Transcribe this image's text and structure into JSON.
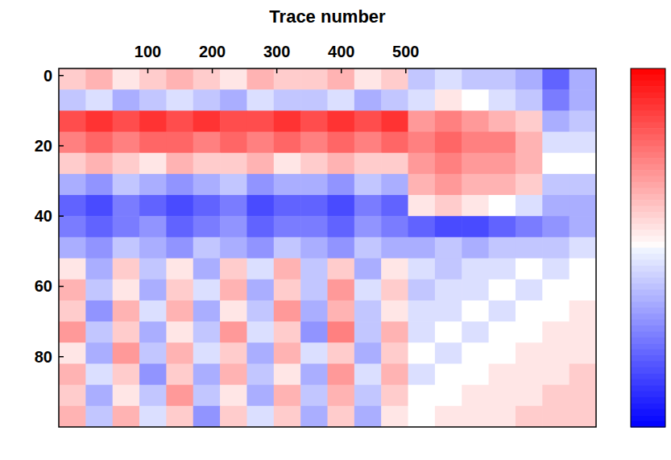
{
  "chart_data": {
    "type": "heatmap",
    "x_label": "Trace number",
    "xlim": [
      -38,
      795
    ],
    "ylim": [
      -2,
      100
    ],
    "xticks": [
      100,
      200,
      300,
      400,
      500
    ],
    "yticks": [
      0,
      20,
      40,
      60,
      80
    ],
    "x": [
      -17.2,
      24.5,
      66.1,
      107.8,
      149.4,
      191.1,
      232.7,
      274.4,
      316.0,
      357.7,
      399.3,
      441.0,
      482.6,
      524.3,
      565.9,
      607.6,
      649.2,
      690.9,
      732.5,
      774.2
    ],
    "y": [
      1,
      7,
      13,
      19,
      25,
      31,
      37,
      43,
      49,
      55,
      61,
      67,
      73,
      79,
      85,
      91,
      97
    ],
    "cells": [
      [
        0.2,
        0.3,
        0.1,
        0.2,
        0.3,
        0.2,
        0.1,
        0.3,
        0.2,
        0.2,
        0.3,
        0.1,
        0.2,
        -0.2,
        -0.1,
        -0.2,
        -0.2,
        -0.3,
        -0.6,
        -0.3
      ],
      [
        -0.2,
        -0.1,
        -0.3,
        -0.2,
        -0.1,
        -0.2,
        -0.3,
        -0.1,
        -0.2,
        -0.2,
        -0.1,
        -0.3,
        -0.2,
        -0.1,
        0.1,
        0,
        -0.1,
        -0.2,
        -0.5,
        -0.3
      ],
      [
        0.7,
        0.8,
        0.7,
        0.8,
        0.7,
        0.8,
        0.7,
        0.7,
        0.8,
        0.7,
        0.8,
        0.7,
        0.8,
        0.4,
        0.5,
        0.4,
        0.3,
        0.2,
        -0.3,
        -0.2
      ],
      [
        0.5,
        0.6,
        0.5,
        0.6,
        0.6,
        0.5,
        0.6,
        0.5,
        0.6,
        0.5,
        0.6,
        0.5,
        0.6,
        0.5,
        0.6,
        0.5,
        0.5,
        0.3,
        -0.1,
        -0.1
      ],
      [
        0.2,
        0.3,
        0.2,
        0.1,
        0.3,
        0.2,
        0.2,
        0.3,
        0.1,
        0.2,
        0.3,
        0.2,
        0.2,
        0.4,
        0.5,
        0.4,
        0.4,
        0.3,
        0,
        0
      ],
      [
        -0.3,
        -0.4,
        -0.2,
        -0.3,
        -0.4,
        -0.3,
        -0.2,
        -0.4,
        -0.3,
        -0.3,
        -0.4,
        -0.2,
        -0.3,
        0.3,
        0.4,
        0.3,
        0.3,
        0.2,
        -0.2,
        -0.2
      ],
      [
        -0.6,
        -0.7,
        -0.5,
        -0.6,
        -0.7,
        -0.6,
        -0.5,
        -0.7,
        -0.6,
        -0.6,
        -0.7,
        -0.5,
        -0.6,
        0.1,
        0.2,
        0.1,
        0,
        -0.1,
        -0.3,
        -0.3
      ],
      [
        -0.5,
        -0.6,
        -0.5,
        -0.4,
        -0.6,
        -0.5,
        -0.4,
        -0.6,
        -0.5,
        -0.5,
        -0.6,
        -0.4,
        -0.5,
        -0.6,
        -0.7,
        -0.7,
        -0.6,
        -0.5,
        -0.4,
        -0.3
      ],
      [
        -0.3,
        -0.4,
        -0.2,
        -0.3,
        -0.4,
        -0.2,
        -0.3,
        -0.4,
        -0.2,
        -0.3,
        -0.4,
        -0.2,
        -0.3,
        -0.3,
        -0.2,
        -0.3,
        -0.2,
        -0.2,
        -0.2,
        -0.1
      ],
      [
        0.1,
        -0.3,
        0.2,
        -0.2,
        0.1,
        -0.3,
        0.2,
        -0.1,
        0.3,
        -0.2,
        0.2,
        -0.3,
        0.1,
        -0.1,
        -0.2,
        -0.1,
        -0.1,
        0,
        -0.1,
        0
      ],
      [
        0.3,
        -0.2,
        0.1,
        -0.3,
        0.2,
        -0.1,
        0.3,
        -0.3,
        0.2,
        -0.2,
        0.4,
        -0.1,
        0.2,
        -0.2,
        -0.1,
        -0.1,
        0,
        -0.1,
        0,
        0
      ],
      [
        0.2,
        -0.4,
        0.3,
        -0.1,
        0.3,
        -0.3,
        0.1,
        -0.2,
        0.4,
        -0.3,
        0.3,
        -0.2,
        0.1,
        -0.1,
        -0.1,
        0,
        -0.1,
        0,
        0,
        0.1
      ],
      [
        0.4,
        -0.2,
        0.2,
        -0.3,
        0.1,
        -0.2,
        0.4,
        -0.1,
        0.2,
        -0.4,
        0.5,
        -0.2,
        0.3,
        -0.1,
        0,
        -0.1,
        0,
        0,
        0.1,
        0.1
      ],
      [
        0.1,
        -0.3,
        0.4,
        -0.2,
        0.3,
        -0.1,
        0.2,
        -0.3,
        0.3,
        -0.1,
        0.2,
        -0.3,
        0.2,
        0,
        -0.1,
        0,
        0,
        0.1,
        0.1,
        0.1
      ],
      [
        0.3,
        -0.1,
        0.2,
        -0.4,
        0.2,
        -0.3,
        0.3,
        -0.2,
        0.1,
        -0.3,
        0.4,
        -0.1,
        0.3,
        -0.1,
        0,
        0,
        0.1,
        0.1,
        0.1,
        0.2
      ],
      [
        0.2,
        -0.3,
        0.1,
        -0.2,
        0.4,
        -0.2,
        0.1,
        -0.3,
        0.3,
        -0.2,
        0.3,
        -0.2,
        0.2,
        0,
        0,
        0.1,
        0.1,
        0.1,
        0.2,
        0.2
      ],
      [
        0.3,
        -0.2,
        0.3,
        -0.1,
        0.2,
        -0.4,
        0.2,
        -0.1,
        0.2,
        -0.3,
        0.2,
        -0.3,
        0.1,
        0,
        0.1,
        0.1,
        0.1,
        0.2,
        0.2,
        0.2
      ]
    ],
    "colorbar_range": [
      -1,
      1
    ]
  }
}
